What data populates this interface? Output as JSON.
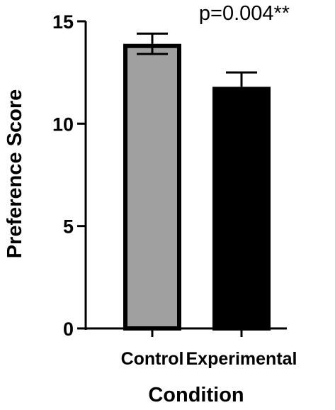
{
  "chart_data": {
    "type": "bar",
    "categories": [
      "Control",
      "Experimental"
    ],
    "values": [
      13.9,
      11.8
    ],
    "error_upper": [
      14.4,
      12.5
    ],
    "error_lower": [
      13.4,
      null
    ],
    "bar_colors": [
      "#a0a0a0",
      "#000000"
    ],
    "xlabel": "Condition",
    "ylabel": "Preference Score",
    "ylim": [
      0,
      15
    ],
    "yticks": [
      "0",
      "5",
      "10",
      "15"
    ],
    "annotation": "p=0.004**",
    "grid": false
  }
}
